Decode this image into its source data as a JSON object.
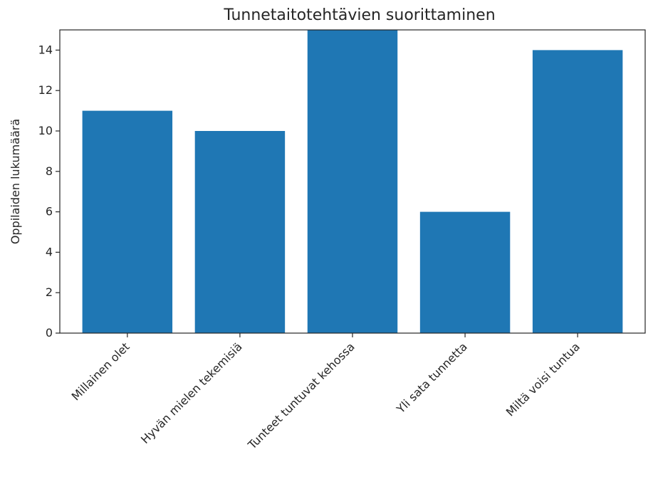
{
  "chart_data": {
    "type": "bar",
    "title": "Tunnetaitotehtävien suorittaminen",
    "xlabel": "",
    "ylabel": "Oppilaiden lukumäärä",
    "categories": [
      "Millainen olet",
      "Hyvän mielen tekemisiä",
      "Tunteet tuntuvat kehossa",
      "Yli sata tunnetta",
      "Miltä voisi tuntua"
    ],
    "values": [
      11,
      10,
      15,
      6,
      14
    ],
    "ylim": [
      0,
      15
    ],
    "yticks": [
      0,
      2,
      4,
      6,
      8,
      10,
      12,
      14
    ],
    "ytick_labels": [
      "0",
      "2",
      "4",
      "6",
      "8",
      "10",
      "12",
      "14"
    ],
    "grid": false,
    "bar_color": "#1f77b4"
  }
}
